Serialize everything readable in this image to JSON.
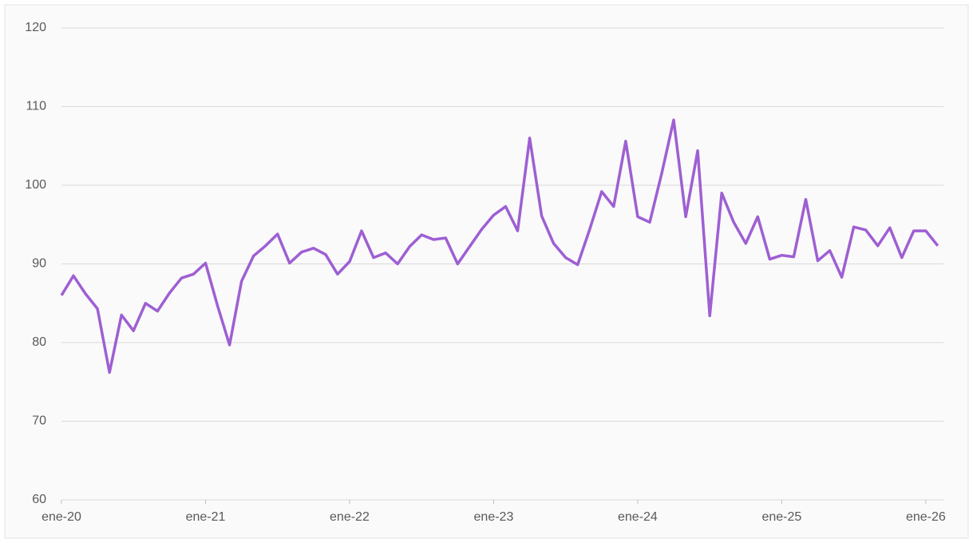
{
  "chart_data": {
    "type": "line",
    "categories": [
      "ene-20",
      null,
      null,
      null,
      null,
      null,
      null,
      null,
      null,
      null,
      null,
      null,
      "ene-21",
      null,
      null,
      null,
      null,
      null,
      null,
      null,
      null,
      null,
      null,
      null,
      "ene-22",
      null,
      null,
      null,
      null,
      null,
      null,
      null,
      null,
      null,
      null,
      null,
      "ene-23",
      null,
      null,
      null,
      null,
      null,
      null,
      null,
      null,
      null,
      null,
      null,
      "ene-24",
      null,
      null,
      null,
      null,
      null,
      null,
      null,
      null,
      null,
      null,
      null,
      "ene-25",
      null,
      null,
      null,
      null,
      null,
      null,
      null,
      null,
      null,
      null,
      null,
      "ene-26",
      null
    ],
    "values": [
      86.0,
      88.5,
      86.2,
      84.3,
      76.2,
      83.5,
      81.5,
      85.0,
      84.0,
      86.3,
      88.2,
      88.7,
      90.1,
      84.7,
      79.7,
      87.8,
      91.0,
      92.3,
      93.8,
      90.1,
      91.5,
      92.0,
      91.2,
      88.7,
      90.3,
      94.2,
      90.8,
      91.4,
      90.0,
      92.2,
      93.7,
      93.1,
      93.3,
      90.0,
      92.2,
      94.4,
      96.2,
      97.3,
      94.2,
      106.0,
      96.1,
      92.6,
      90.8,
      89.9,
      94.4,
      99.2,
      97.3,
      105.6,
      96.0,
      95.3,
      101.5,
      108.3,
      96.0,
      104.4,
      83.4,
      99.0,
      95.3,
      92.6,
      96.0,
      90.6,
      91.1,
      90.9,
      98.2,
      90.4,
      91.7,
      88.3,
      94.7,
      94.3,
      92.3,
      94.6,
      90.8,
      94.2,
      94.2,
      92.3
    ],
    "color": "#9e5fd3",
    "ylim": [
      60,
      120
    ],
    "yticks": [
      60,
      70,
      80,
      90,
      100,
      110,
      120
    ],
    "grid": true
  }
}
